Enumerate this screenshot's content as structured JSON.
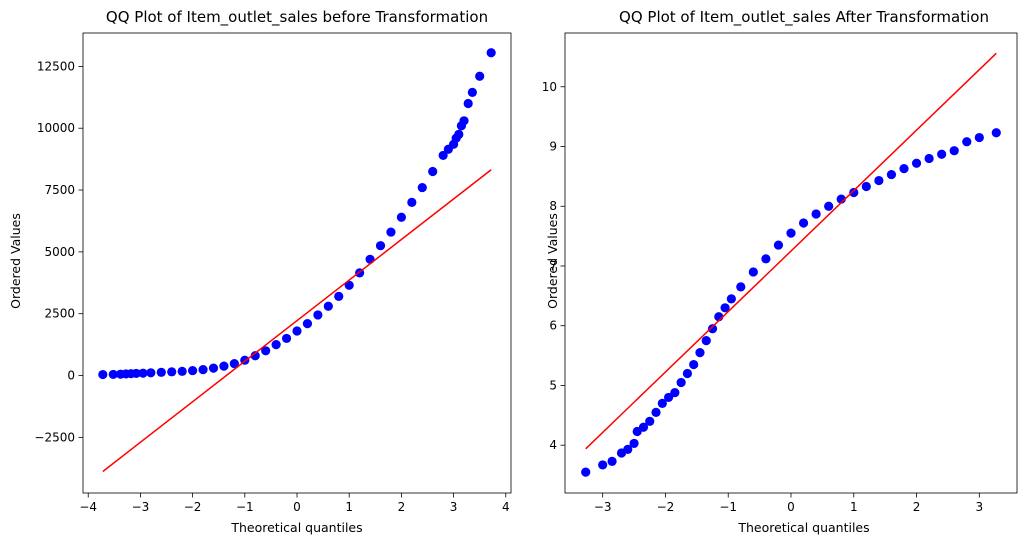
{
  "chart_data": [
    {
      "type": "scatter",
      "title": "QQ Plot of Item_outlet_sales before Transformation",
      "xlabel": "Theoretical quantiles",
      "ylabel": "Ordered Values",
      "xlim": [
        -4.1,
        4.1
      ],
      "ylim": [
        -4750,
        13850
      ],
      "xticks": [
        -4,
        -3,
        -2,
        -1,
        0,
        1,
        2,
        3,
        4
      ],
      "yticks": [
        -2500,
        0,
        2500,
        5000,
        7500,
        10000,
        12500
      ],
      "grid": false,
      "marker_color": "#0000ff",
      "line_color": "#ff0000",
      "fit_line": {
        "x": [
          -3.72,
          3.72
        ],
        "y": [
          -3880,
          8320
        ]
      },
      "points": {
        "x": [
          -3.72,
          -3.52,
          -3.38,
          -3.28,
          -3.18,
          -3.08,
          -2.95,
          -2.8,
          -2.6,
          -2.4,
          -2.2,
          -2.0,
          -1.8,
          -1.6,
          -1.4,
          -1.2,
          -1.0,
          -0.8,
          -0.6,
          -0.4,
          -0.2,
          0.0,
          0.2,
          0.4,
          0.6,
          0.8,
          1.0,
          1.2,
          1.4,
          1.6,
          1.8,
          2.0,
          2.2,
          2.4,
          2.6,
          2.8,
          2.9,
          3.0,
          3.05,
          3.1,
          3.15,
          3.2,
          3.28,
          3.36,
          3.5,
          3.72
        ],
        "y": [
          40,
          45,
          55,
          65,
          75,
          85,
          95,
          110,
          130,
          150,
          170,
          200,
          240,
          300,
          380,
          480,
          620,
          800,
          1000,
          1250,
          1500,
          1800,
          2100,
          2450,
          2800,
          3200,
          3650,
          4150,
          4700,
          5250,
          5800,
          6400,
          7000,
          7600,
          8250,
          8900,
          9150,
          9350,
          9600,
          9750,
          10100,
          10300,
          11000,
          11450,
          12100,
          13050
        ]
      }
    },
    {
      "type": "scatter",
      "title": "QQ Plot of Item_outlet_sales After Transformation",
      "xlabel": "Theoretical quantiles",
      "ylabel": "Ordered Values",
      "xlim": [
        -3.6,
        3.6
      ],
      "ylim": [
        3.2,
        10.9
      ],
      "xticks": [
        -3,
        -2,
        -1,
        0,
        1,
        2,
        3
      ],
      "yticks": [
        4,
        5,
        6,
        7,
        8,
        9,
        10
      ],
      "grid": false,
      "marker_color": "#0000ff",
      "line_color": "#ff0000",
      "fit_line": {
        "x": [
          -3.27,
          3.27
        ],
        "y": [
          3.94,
          10.56
        ]
      },
      "points": {
        "x": [
          -3.27,
          -3.0,
          -2.85,
          -2.7,
          -2.6,
          -2.5,
          -2.45,
          -2.35,
          -2.25,
          -2.15,
          -2.05,
          -1.95,
          -1.85,
          -1.75,
          -1.65,
          -1.55,
          -1.45,
          -1.35,
          -1.25,
          -1.15,
          -1.05,
          -0.95,
          -0.8,
          -0.6,
          -0.4,
          -0.2,
          0.0,
          0.2,
          0.4,
          0.6,
          0.8,
          1.0,
          1.2,
          1.4,
          1.6,
          1.8,
          2.0,
          2.2,
          2.4,
          2.6,
          2.8,
          3.0,
          3.27
        ],
        "y": [
          3.55,
          3.67,
          3.73,
          3.87,
          3.93,
          4.03,
          4.23,
          4.3,
          4.4,
          4.55,
          4.7,
          4.8,
          4.88,
          5.05,
          5.2,
          5.35,
          5.55,
          5.75,
          5.95,
          6.15,
          6.3,
          6.45,
          6.65,
          6.9,
          7.12,
          7.35,
          7.55,
          7.72,
          7.87,
          8.0,
          8.12,
          8.23,
          8.33,
          8.43,
          8.53,
          8.63,
          8.72,
          8.8,
          8.87,
          8.93,
          9.08,
          9.15,
          9.23
        ]
      }
    }
  ]
}
